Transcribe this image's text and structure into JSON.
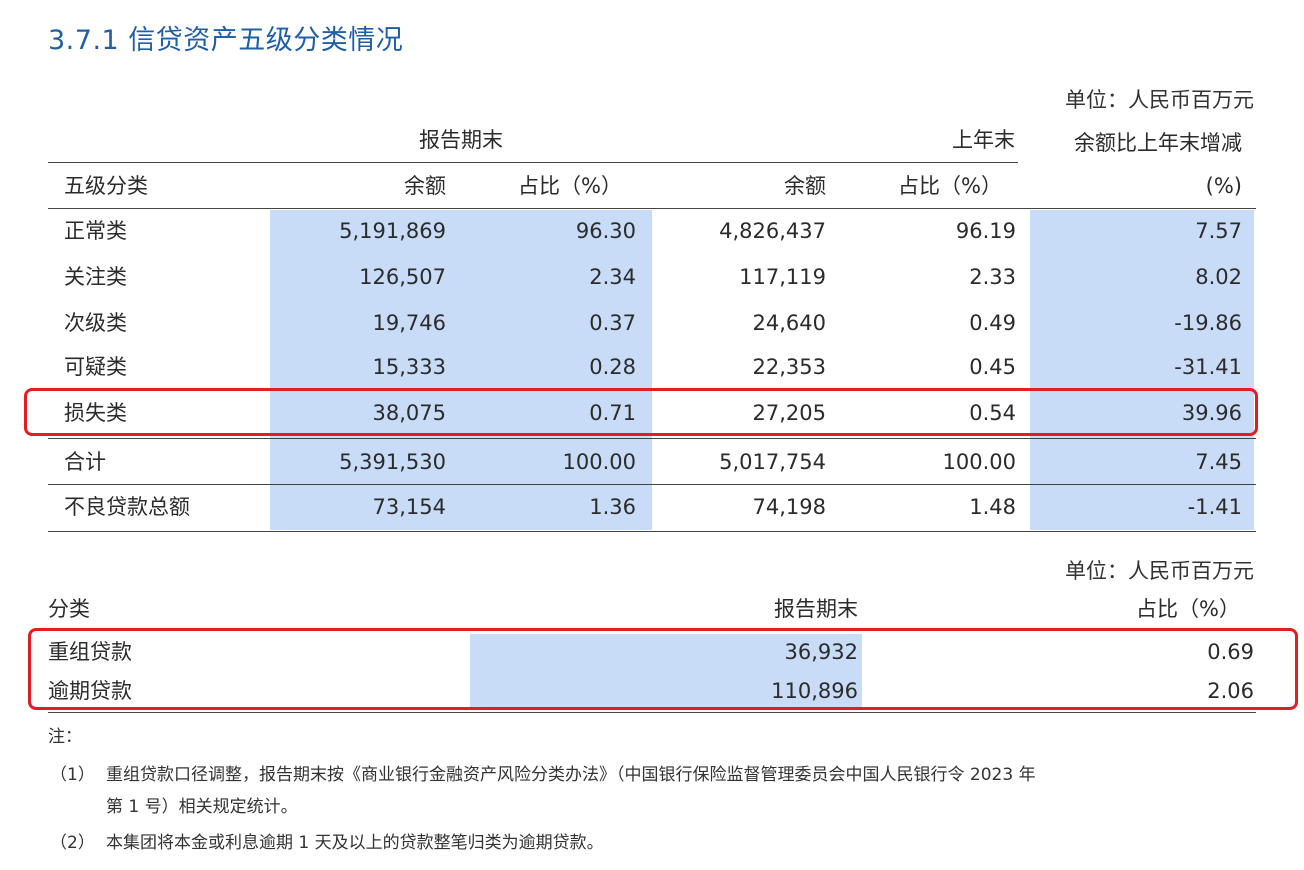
{
  "title": "3.7.1  信贷资产五级分类情况",
  "table1": {
    "unit": "单位：人民币百万元",
    "group_report": "报告期末",
    "group_lastyear": "上年末",
    "group_change": "余额比上年末增减",
    "col_class": "五级分类",
    "col_balance": "余额",
    "col_ratio": "占比（%）",
    "col_change_unit": "(%)",
    "rows": [
      {
        "name": "正常类",
        "bal": "5,191,869",
        "pct": "96.30",
        "bal_ly": "4,826,437",
        "pct_ly": "96.19",
        "chg": "7.57"
      },
      {
        "name": "关注类",
        "bal": "126,507",
        "pct": "2.34",
        "bal_ly": "117,119",
        "pct_ly": "2.33",
        "chg": "8.02"
      },
      {
        "name": "次级类",
        "bal": "19,746",
        "pct": "0.37",
        "bal_ly": "24,640",
        "pct_ly": "0.49",
        "chg": "-19.86"
      },
      {
        "name": "可疑类",
        "bal": "15,333",
        "pct": "0.28",
        "bal_ly": "22,353",
        "pct_ly": "0.45",
        "chg": "-31.41"
      },
      {
        "name": "损失类",
        "bal": "38,075",
        "pct": "0.71",
        "bal_ly": "27,205",
        "pct_ly": "0.54",
        "chg": "39.96"
      },
      {
        "name": "合计",
        "bal": "5,391,530",
        "pct": "100.00",
        "bal_ly": "5,017,754",
        "pct_ly": "100.00",
        "chg": "7.45"
      },
      {
        "name": "不良贷款总额",
        "bal": "73,154",
        "pct": "1.36",
        "bal_ly": "74,198",
        "pct_ly": "1.48",
        "chg": "-1.41"
      }
    ]
  },
  "table2": {
    "unit": "单位：人民币百万元",
    "col_class": "分类",
    "col_report": "报告期末",
    "col_ratio": "占比（%）",
    "rows": [
      {
        "name": "重组贷款",
        "val": "36,932",
        "pct": "0.69"
      },
      {
        "name": "逾期贷款",
        "val": "110,896",
        "pct": "2.06"
      }
    ]
  },
  "notes": {
    "label": "注：",
    "n1_idx": "（1）",
    "n1_line1": "重组贷款口径调整，报告期末按《商业银行金融资产风险分类办法》（中国银行保险监督管理委员会中国人民银行令 2023 年",
    "n1_line2": "第 1 号）相关规定统计。",
    "n2_idx": "（2）",
    "n2_text": "本集团将本金或利息逾期 1 天及以上的贷款整笔归类为逾期贷款。"
  },
  "colors": {
    "highlight": "#c9dcf7",
    "title": "#1f5fa8",
    "redbox": "#e02020"
  }
}
